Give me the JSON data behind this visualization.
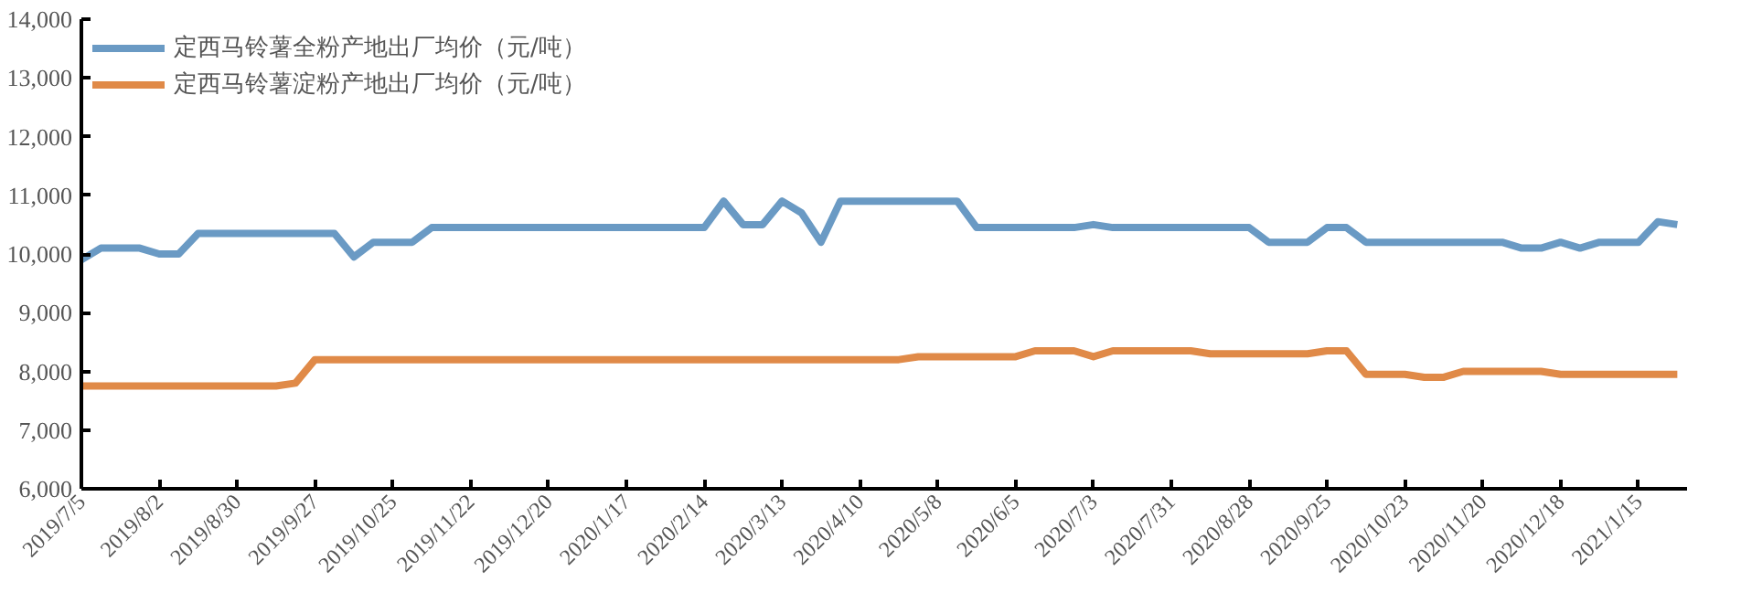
{
  "chart_data": {
    "type": "line",
    "categories": [
      "2019/7/5",
      null,
      null,
      null,
      "2019/8/2",
      null,
      null,
      null,
      "2019/8/30",
      null,
      null,
      null,
      "2019/9/27",
      null,
      null,
      null,
      "2019/10/25",
      null,
      null,
      null,
      "2019/11/22",
      null,
      null,
      null,
      "2019/12/20",
      null,
      null,
      null,
      "2020/1/17",
      null,
      null,
      null,
      "2020/2/14",
      null,
      null,
      null,
      "2020/3/13",
      null,
      null,
      null,
      "2020/4/10",
      null,
      null,
      null,
      "2020/5/8",
      null,
      null,
      null,
      "2020/6/5",
      null,
      null,
      null,
      "2020/7/3",
      null,
      null,
      null,
      "2020/7/31",
      null,
      null,
      null,
      "2020/8/28",
      null,
      null,
      null,
      "2020/9/25",
      null,
      null,
      null,
      "2020/10/23",
      null,
      null,
      null,
      "2020/11/20",
      null,
      null,
      null,
      "2020/12/18",
      null,
      null,
      null,
      "2021/1/15",
      null,
      null
    ],
    "series": [
      {
        "name": "定西马铃薯全粉产地出厂均价（元/吨）",
        "color": "#6a9ac4",
        "values": [
          9900,
          10100,
          10100,
          10100,
          10000,
          10000,
          10350,
          10350,
          10350,
          10350,
          10350,
          10350,
          10350,
          10350,
          9950,
          10200,
          10200,
          10200,
          10450,
          10450,
          10450,
          10450,
          10450,
          10450,
          10450,
          10450,
          10450,
          10450,
          10450,
          10450,
          10450,
          10450,
          10450,
          10900,
          10500,
          10500,
          10900,
          10700,
          10200,
          10900,
          10900,
          10900,
          10900,
          10900,
          10900,
          10900,
          10450,
          10450,
          10450,
          10450,
          10450,
          10450,
          10500,
          10450,
          10450,
          10450,
          10450,
          10450,
          10450,
          10450,
          10450,
          10200,
          10200,
          10200,
          10450,
          10450,
          10200,
          10200,
          10200,
          10200,
          10200,
          10200,
          10200,
          10200,
          10100,
          10100,
          10200,
          10100,
          10200,
          10200,
          10200,
          10550,
          10500
        ]
      },
      {
        "name": "定西马铃薯淀粉产地出厂均价（元/吨）",
        "color": "#e08a48",
        "values": [
          7750,
          7750,
          7750,
          7750,
          7750,
          7750,
          7750,
          7750,
          7750,
          7750,
          7750,
          7800,
          8200,
          8200,
          8200,
          8200,
          8200,
          8200,
          8200,
          8200,
          8200,
          8200,
          8200,
          8200,
          8200,
          8200,
          8200,
          8200,
          8200,
          8200,
          8200,
          8200,
          8200,
          8200,
          8200,
          8200,
          8200,
          8200,
          8200,
          8200,
          8200,
          8200,
          8200,
          8250,
          8250,
          8250,
          8250,
          8250,
          8250,
          8350,
          8350,
          8350,
          8250,
          8350,
          8350,
          8350,
          8350,
          8350,
          8300,
          8300,
          8300,
          8300,
          8300,
          8300,
          8350,
          8350,
          7950,
          7950,
          7950,
          7900,
          7900,
          8000,
          8000,
          8000,
          8000,
          8000,
          7950,
          7950,
          7950,
          7950,
          7950,
          7950,
          7950
        ]
      }
    ],
    "ylim": [
      6000,
      14000
    ],
    "yticks": [
      {
        "value": 6000,
        "label": "6,000"
      },
      {
        "value": 7000,
        "label": "7,000"
      },
      {
        "value": 8000,
        "label": "8,000"
      },
      {
        "value": 9000,
        "label": "9,000"
      },
      {
        "value": 10000,
        "label": "10,000"
      },
      {
        "value": 11000,
        "label": "11,000"
      },
      {
        "value": 12000,
        "label": "12,000"
      },
      {
        "value": 13000,
        "label": "13,000"
      },
      {
        "value": 14000,
        "label": "14,000"
      }
    ],
    "legend": "top left"
  }
}
